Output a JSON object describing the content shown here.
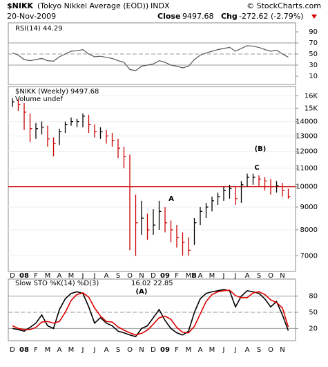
{
  "header": {
    "symbol": "$NIKK",
    "name": "(Tokyo Nikkei Average (EOD))",
    "exchange": "INDX",
    "credit": "© StockCharts.com",
    "date": "20-Nov-2009",
    "close_label": "Close",
    "chg_label": "Chg",
    "chg": "-272.62 (-2.79%)"
  },
  "chart_data": [
    {
      "type": "line",
      "title": "RSI(14)",
      "color": "#555555",
      "values": [
        52,
        48,
        40,
        38,
        40,
        42,
        38,
        37,
        45,
        50,
        55,
        56,
        58,
        50,
        45,
        46,
        44,
        42,
        38,
        35,
        22,
        20,
        28,
        30,
        32,
        38,
        35,
        30,
        28,
        25,
        28,
        40,
        48,
        52,
        55,
        58,
        60,
        62,
        55,
        60,
        65,
        64,
        62,
        58,
        55,
        57,
        50,
        44.29
      ],
      "ylim": [
        0,
        100
      ],
      "yticks": [
        90,
        70,
        50,
        30,
        10
      ],
      "grid_lines": [
        70,
        50,
        30
      ]
    },
    {
      "type": "ohlc",
      "title": "$NIKK (Weekly)",
      "subtitle": "Volume undef",
      "log": true,
      "categories": [
        "D",
        null,
        "08",
        null,
        "F",
        null,
        "M",
        null,
        "A",
        null,
        "M",
        null,
        "J",
        null,
        "J",
        null,
        "A",
        null,
        "S",
        null,
        "O",
        null,
        "N",
        null,
        "D",
        null,
        "09",
        null,
        "F",
        null,
        "M",
        null,
        "A",
        null,
        "M",
        null,
        "J",
        null,
        "J",
        null,
        "A",
        null,
        "S",
        null,
        "O",
        null,
        "N",
        null
      ],
      "high": [
        15800,
        15700,
        15400,
        14600,
        13900,
        14000,
        13700,
        12900,
        13500,
        14000,
        14300,
        14200,
        14600,
        14500,
        13800,
        13600,
        13400,
        13200,
        12800,
        12300,
        11800,
        9600,
        9300,
        8700,
        8900,
        9300,
        9000,
        8400,
        8200,
        7900,
        7700,
        8500,
        9000,
        9200,
        9500,
        9700,
        10000,
        10100,
        10000,
        10300,
        10700,
        10700,
        10600,
        10500,
        10400,
        10300,
        10200,
        9900
      ],
      "low": [
        15100,
        14800,
        13400,
        12600,
        12800,
        13100,
        12300,
        11700,
        12400,
        13200,
        13700,
        13600,
        13600,
        13200,
        12900,
        12800,
        12500,
        12300,
        11600,
        11000,
        7200,
        6990,
        7800,
        7600,
        7800,
        8000,
        7900,
        7500,
        7300,
        7000,
        7000,
        7400,
        8200,
        8500,
        8800,
        9100,
        9300,
        9400,
        9100,
        9200,
        10000,
        10100,
        10000,
        9800,
        9600,
        9700,
        9500,
        9400
      ],
      "close": [
        15500,
        15300,
        14700,
        13500,
        13500,
        13600,
        12800,
        12500,
        13300,
        13800,
        14000,
        14000,
        14400,
        13800,
        13300,
        13300,
        13000,
        12700,
        12200,
        11700,
        10000,
        8300,
        8500,
        8000,
        8200,
        8800,
        8300,
        8000,
        7700,
        7500,
        7200,
        8300,
        8800,
        9000,
        9300,
        9500,
        9800,
        9900,
        9400,
        10100,
        10500,
        10500,
        10400,
        10300,
        10000,
        10050,
        9800,
        9497.68
      ],
      "up_color": "#000000",
      "down_color": "#cc0000",
      "ylim": [
        6500,
        16600
      ],
      "yticks": [
        {
          "value": 16000,
          "label": "16K"
        },
        {
          "value": 15000,
          "label": "15K"
        },
        14000,
        13000,
        12000,
        11000,
        10000,
        9000,
        8000,
        7000
      ],
      "hline": {
        "value": 10000,
        "color": "#cc0000"
      },
      "annotations": [
        {
          "text": "A",
          "color": "#e00000"
        },
        {
          "text": "B",
          "color": "#e00000"
        },
        {
          "text": "C",
          "color": "#e00000"
        },
        {
          "text": "(B)",
          "color": "#1a1acc"
        }
      ]
    },
    {
      "type": "line",
      "title": "Slow STO %K(14) %D(3)",
      "categories": [
        "D",
        null,
        "08",
        null,
        "F",
        null,
        "M",
        null,
        "A",
        null,
        "M",
        null,
        "J",
        null,
        "J",
        null,
        "A",
        null,
        "S",
        null,
        "O",
        null,
        "N",
        null,
        "D",
        null,
        "09",
        null,
        "F",
        null,
        "M",
        null,
        "A",
        null,
        "M",
        null,
        "J",
        null,
        "J",
        null,
        "A",
        null,
        "S",
        null,
        "O",
        null,
        "N",
        null
      ],
      "series": [
        {
          "color": "#000000",
          "values": [
            20,
            18,
            15,
            22,
            30,
            45,
            25,
            20,
            55,
            75,
            85,
            88,
            85,
            60,
            30,
            40,
            30,
            25,
            15,
            12,
            8,
            5,
            20,
            25,
            40,
            55,
            35,
            20,
            12,
            8,
            15,
            50,
            75,
            85,
            88,
            90,
            92,
            90,
            60,
            80,
            90,
            88,
            85,
            75,
            60,
            70,
            45,
            16.02
          ]
        },
        {
          "color": "#dd0000",
          "values": [
            25,
            20,
            18,
            18,
            22,
            32,
            33,
            30,
            33,
            50,
            72,
            83,
            86,
            78,
            58,
            43,
            33,
            32,
            23,
            17,
            12,
            8,
            11,
            17,
            28,
            40,
            43,
            37,
            22,
            13,
            12,
            24,
            47,
            70,
            83,
            88,
            90,
            91,
            81,
            77,
            77,
            86,
            88,
            83,
            73,
            68,
            58,
            22.85
          ]
        }
      ],
      "ylim": [
        0,
        100
      ],
      "yticks": [
        80,
        50,
        20
      ],
      "annotations": [
        {
          "text": "(A)",
          "color": "#1a1acc"
        }
      ]
    }
  ]
}
